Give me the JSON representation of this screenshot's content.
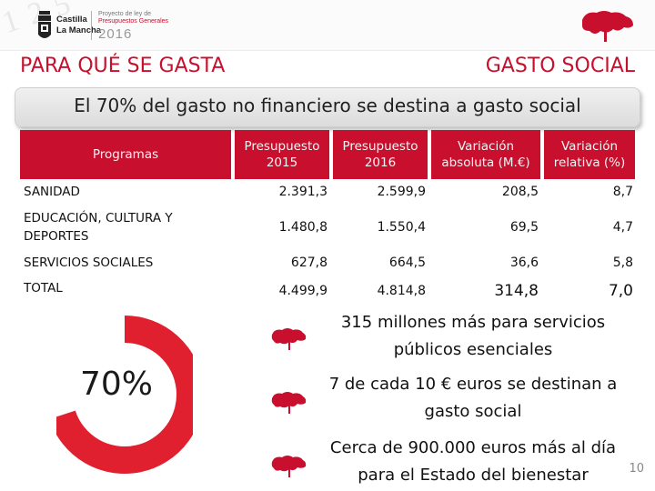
{
  "header": {
    "logo_line1": "Castilla",
    "logo_line2": "La Mancha",
    "budget_line1": "Proyecto de ley de",
    "budget_line2": "Presupuestos Generales",
    "budget_year": "2016",
    "title_left": "PARA QUÉ SE GASTA",
    "title_right": "GASTO SOCIAL"
  },
  "banner": {
    "text": "El 70% del gasto no financiero se destina a gasto social"
  },
  "table": {
    "columns": [
      "Programas",
      "Presupuesto 2015",
      "Presupuesto 2016",
      "Variación absoluta (M.€)",
      "Variación relativa (%)"
    ],
    "rows": [
      {
        "label": "SANIDAD",
        "p2015": "2.391,3",
        "p2016": "2.599,9",
        "var_abs": "208,5",
        "var_rel": "8,7"
      },
      {
        "label": "EDUCACIÓN, CULTURA Y DEPORTES",
        "p2015": "1.480,8",
        "p2016": "1.550,4",
        "var_abs": "69,5",
        "var_rel": "4,7"
      },
      {
        "label": "SERVICIOS SOCIALES",
        "p2015": "627,8",
        "p2016": "664,5",
        "var_abs": "36,6",
        "var_rel": "5,8"
      },
      {
        "label": "TOTAL",
        "p2015": "4.499,9",
        "p2016": "4.814,8",
        "var_abs": "314,8",
        "var_rel": "7,0"
      }
    ]
  },
  "donut": {
    "label": "70%",
    "value": 70,
    "color": "#e0202f"
  },
  "bullets": [
    {
      "text": "315 millones más para servicios públicos esenciales"
    },
    {
      "text": "7 de cada 10 € euros se destinan a gasto social"
    },
    {
      "text": "Cerca de 900.000 euros más al día para el Estado del bienestar"
    }
  ],
  "page_number": "10",
  "colors": {
    "accent": "#c8102e",
    "bullet_icon": "#c8102e"
  },
  "icons": {
    "crest": "coat-of-arms-icon",
    "map": "castilla-la-mancha-map-icon"
  }
}
